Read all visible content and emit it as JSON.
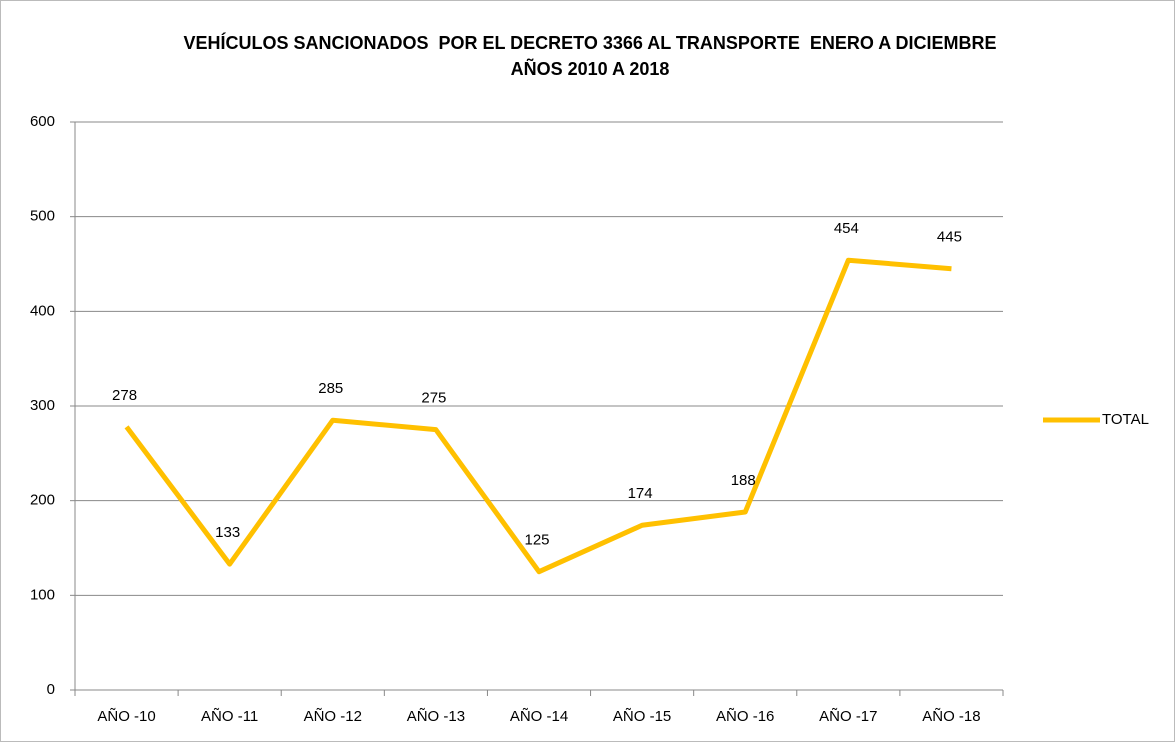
{
  "chart_data": {
    "type": "line",
    "title": "VEHÍCULOS SANCIONADOS  POR EL DECRETO 3366 AL TRANSPORTE  ENERO A DICIEMBRE  AÑOS 2010 A 2018",
    "categories": [
      "AÑO -10",
      "AÑO -11",
      "AÑO -12",
      "AÑO -13",
      "AÑO -14",
      "AÑO -15",
      "AÑO -16",
      "AÑO -17",
      "AÑO -18"
    ],
    "series": [
      {
        "name": "TOTAL",
        "color": "#FFC000",
        "values": [
          278,
          133,
          285,
          275,
          125,
          174,
          188,
          454,
          445
        ]
      }
    ],
    "ylim": [
      0,
      600
    ],
    "yticks": [
      0,
      100,
      200,
      300,
      400,
      500,
      600
    ],
    "grid": true,
    "legend": "right"
  }
}
